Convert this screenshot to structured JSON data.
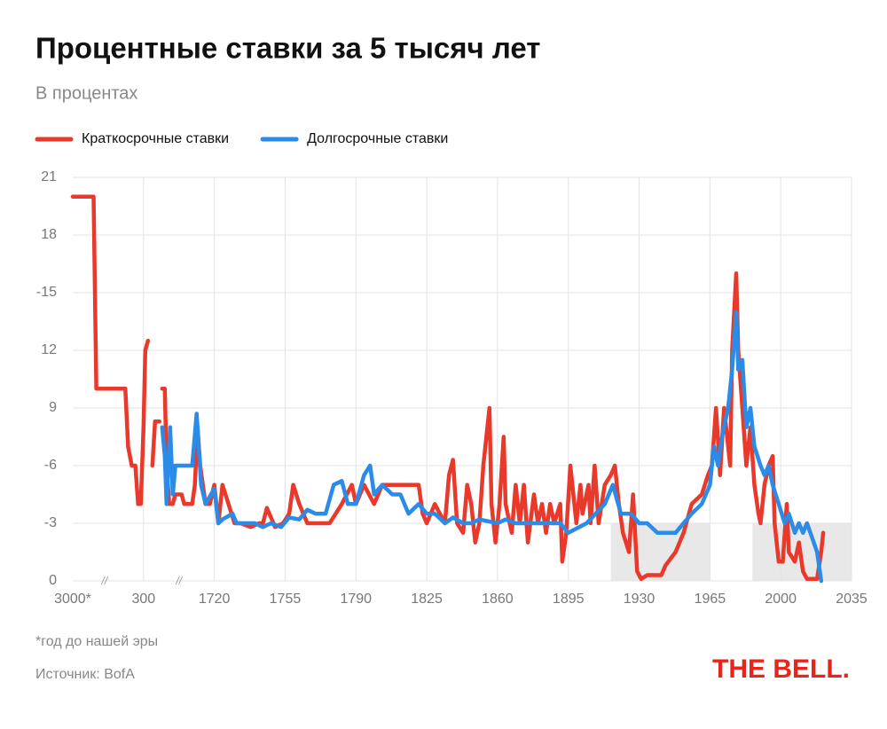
{
  "chart_data": {
    "type": "line",
    "title": "Процентные ставки за 5 тысяч лет",
    "subtitle": "В процентах",
    "footnote": "*год до нашей эры",
    "source": "Источник: BofA",
    "logo": "THE BELL.",
    "legend": "top-left",
    "grid": true,
    "xlim": [
      -3000,
      2035
    ],
    "xticks": [
      {
        "value": -3000,
        "label": "3000*"
      },
      300,
      1720,
      1755,
      1790,
      1825,
      1860,
      1895,
      1930,
      1965,
      2000,
      2035
    ],
    "axis_breaks": [
      {
        "x": -1519,
        "label": "//"
      },
      {
        "x": 1010,
        "label": "//"
      }
    ],
    "ylim": [
      0,
      21
    ],
    "yticks": [
      0,
      {
        "value": 3,
        "label": "-3"
      },
      {
        "value": 6,
        "label": "-6"
      },
      9,
      12,
      {
        "value": 15,
        "label": "-15"
      },
      18,
      21
    ],
    "bands": [
      {
        "x": [
          1916,
          1965
        ],
        "y": [
          0,
          3
        ]
      },
      {
        "x": [
          1986,
          2035
        ],
        "y": [
          0,
          3
        ]
      }
    ],
    "band_color": "#e8e8e8",
    "series": [
      {
        "name": "Краткосрочные ставки",
        "color": "#e8392b",
        "x": [
          -3000,
          -2027,
          -1900,
          -547,
          -420,
          -250,
          -81,
          46,
          173,
          300,
          336,
          389,
          430,
          478,
          531,
          620,
          650,
          673,
          726,
          762,
          815,
          886,
          939,
          1063,
          1117,
          1276,
          1330,
          1383,
          1436,
          1543,
          1631,
          1720,
          1722,
          1724,
          1727,
          1730,
          1733,
          1738,
          1742,
          1744,
          1746,
          1750,
          1754,
          1757,
          1759,
          1762,
          1766,
          1773,
          1777,
          1780,
          1783,
          1788,
          1790,
          1794,
          1799,
          1803,
          1821,
          1823,
          1825,
          1829,
          1834,
          1836,
          1838,
          1840,
          1843,
          1845,
          1847,
          1849,
          1851,
          1853,
          1856,
          1857,
          1859,
          1861,
          1863,
          1864,
          1867,
          1869,
          1871,
          1873,
          1875,
          1878,
          1880,
          1882,
          1884,
          1886,
          1888,
          1891,
          1892,
          1894,
          1896,
          1899,
          1901,
          1902,
          1905,
          1906,
          1908,
          1910,
          1913,
          1916,
          1918,
          1920,
          1922,
          1925,
          1927,
          1929,
          1931,
          1934,
          1941,
          1943,
          1948,
          1952,
          1956,
          1961,
          1964,
          1966,
          1968,
          1970,
          1972,
          1975,
          1976,
          1978,
          1979,
          1981,
          1983,
          1985,
          1987,
          1989,
          1990,
          1992,
          1994,
          1996,
          1997,
          1999,
          2001,
          2003,
          2004,
          2007,
          2009,
          2011,
          2013,
          2018,
          2020,
          2021
        ],
        "values": [
          20,
          20,
          10,
          10,
          7,
          6,
          6,
          4,
          4,
          8,
          12,
          12.5,
          null,
          6,
          8.3,
          8.3,
          null,
          10,
          10,
          6,
          4,
          4,
          4.5,
          4.5,
          4,
          4,
          5,
          8,
          6,
          4,
          4,
          5,
          3,
          5,
          4,
          3,
          3,
          2.8,
          3,
          3,
          3.8,
          2.8,
          3,
          3.5,
          5,
          4,
          3,
          3,
          3,
          3.5,
          4,
          5,
          4,
          5,
          4,
          5,
          5,
          3.5,
          3,
          4,
          3,
          5.5,
          6.3,
          3,
          2.5,
          5,
          4,
          2,
          3,
          6,
          9,
          4,
          2,
          4,
          7.5,
          4,
          2.5,
          5,
          3,
          5,
          2,
          4.5,
          3,
          4,
          2.5,
          4,
          3,
          4,
          1,
          2.5,
          6,
          3,
          5,
          3.5,
          5,
          3,
          6,
          3,
          5,
          5.5,
          6,
          4,
          2.5,
          1.5,
          4.5,
          0.5,
          0.1,
          0.3,
          0.3,
          0.8,
          1.5,
          2.5,
          4,
          4.5,
          5.5,
          6,
          9,
          5.5,
          9,
          6,
          12,
          16,
          12,
          9,
          6,
          8,
          5,
          3.5,
          3,
          5,
          6,
          6.5,
          3,
          1,
          1,
          4,
          1.5,
          1,
          2,
          0.5,
          0.1,
          0.1,
          1.5,
          2.5
        ]
      },
      {
        "name": "Долгосрочные ставки",
        "color": "#2b8be8",
        "x": [
          673,
          726,
          762,
          833,
          886,
          939,
          1276,
          1365,
          1454,
          1543,
          1720,
          1722,
          1724,
          1729,
          1731,
          1735,
          1740,
          1744,
          1748,
          1753,
          1757,
          1762,
          1766,
          1770,
          1775,
          1779,
          1783,
          1786,
          1790,
          1794,
          1797,
          1799,
          1803,
          1808,
          1812,
          1816,
          1821,
          1825,
          1829,
          1834,
          1838,
          1843,
          1847,
          1851,
          1860,
          1864,
          1869,
          1878,
          1886,
          1891,
          1895,
          1904,
          1913,
          1917,
          1921,
          1926,
          1930,
          1934,
          1939,
          1943,
          1948,
          1952,
          1956,
          1961,
          1965,
          1967,
          1969,
          1971,
          1974,
          1976,
          1978,
          1979,
          1981,
          1983,
          1985,
          1987,
          1990,
          1992,
          1994,
          1996,
          1999,
          2002,
          2004,
          2007,
          2009,
          2011,
          2013,
          2015,
          2018,
          2020
        ],
        "values": [
          8,
          6.5,
          4,
          8,
          4.5,
          6,
          6,
          8.7,
          5,
          4,
          4.8,
          3,
          3.2,
          3.5,
          3,
          3,
          3,
          2.8,
          3,
          2.8,
          3.3,
          3.2,
          3.7,
          3.5,
          3.5,
          5,
          5.2,
          4,
          4,
          5.5,
          6,
          4.5,
          5,
          4.5,
          4.5,
          3.5,
          4,
          3.5,
          3.5,
          3,
          3.3,
          3,
          3,
          3.2,
          3,
          3.2,
          3,
          3,
          3,
          3,
          2.5,
          3,
          4,
          5,
          3.5,
          3.5,
          3,
          3,
          2.5,
          2.5,
          2.5,
          3,
          3.5,
          4,
          5,
          7,
          6,
          7.5,
          9,
          11,
          14,
          11,
          11.5,
          8,
          9,
          7,
          6,
          5.5,
          6,
          5,
          4,
          3,
          3.5,
          2.5,
          3,
          2.5,
          3,
          2.4,
          1.5,
          0
        ]
      }
    ]
  }
}
